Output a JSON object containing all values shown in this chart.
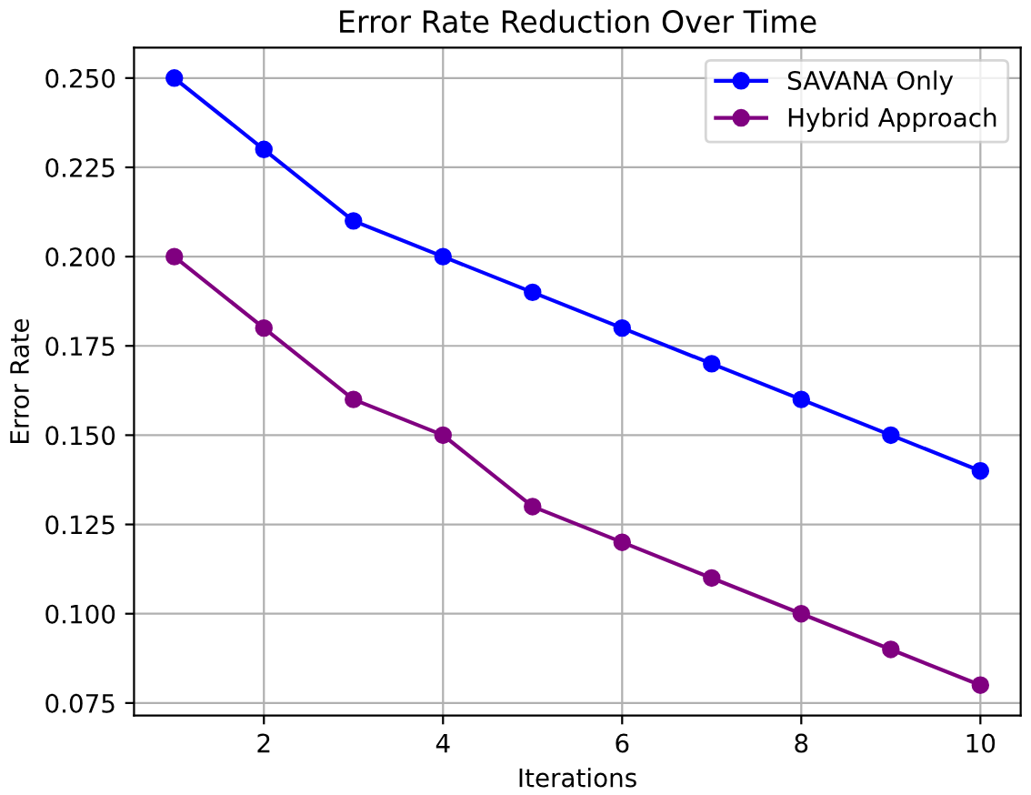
{
  "chart_data": {
    "type": "line",
    "title": "Error Rate Reduction Over Time",
    "xlabel": "Iterations",
    "ylabel": "Error Rate",
    "x": [
      1,
      2,
      3,
      4,
      5,
      6,
      7,
      8,
      9,
      10
    ],
    "series": [
      {
        "name": "SAVANA Only",
        "color": "#0000ff",
        "values": [
          0.25,
          0.23,
          0.21,
          0.2,
          0.19,
          0.18,
          0.17,
          0.16,
          0.15,
          0.14
        ]
      },
      {
        "name": "Hybrid Approach",
        "color": "#800080",
        "values": [
          0.2,
          0.18,
          0.16,
          0.15,
          0.13,
          0.12,
          0.11,
          0.1,
          0.09,
          0.08
        ]
      }
    ],
    "xlim": [
      0.55,
      10.45
    ],
    "ylim": [
      0.0715,
      0.2585
    ],
    "xticks": [
      2,
      4,
      6,
      8,
      10
    ],
    "yticks": [
      {
        "value": 0.075,
        "label": "0.075"
      },
      {
        "value": 0.1,
        "label": "0.100"
      },
      {
        "value": 0.125,
        "label": "0.125"
      },
      {
        "value": 0.15,
        "label": "0.150"
      },
      {
        "value": 0.175,
        "label": "0.175"
      },
      {
        "value": 0.2,
        "label": "0.200"
      },
      {
        "value": 0.225,
        "label": "0.225"
      },
      {
        "value": 0.25,
        "label": "0.250"
      }
    ],
    "grid": true,
    "legend": "top right",
    "marker": "circle",
    "line_style": "solid"
  }
}
